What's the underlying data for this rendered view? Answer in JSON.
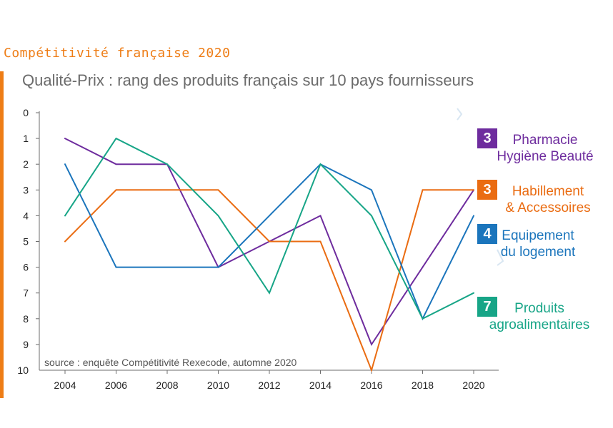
{
  "header": {
    "title": "Compétitivité française 2020",
    "subtitle": "Qualité-Prix : rang des produits français sur 10 pays fournisseurs"
  },
  "colors": {
    "accent": "#ee7d16",
    "pharmacie": "#6e2c9e",
    "habillement": "#ea6c12",
    "equipement": "#1b75bc",
    "agro": "#17a587"
  },
  "chart_data": {
    "type": "line",
    "title": "Qualité-Prix : rang des produits français sur 10 pays fournisseurs",
    "x": [
      2004,
      2006,
      2008,
      2010,
      2012,
      2014,
      2016,
      2018,
      2020
    ],
    "x_tick_labels": [
      "2004",
      "2006",
      "2008",
      "2010",
      "2012",
      "2014",
      "2016",
      "2018",
      "2020"
    ],
    "y_tick_labels": [
      "0",
      "1",
      "2",
      "3",
      "4",
      "5",
      "6",
      "7",
      "8",
      "9",
      "10"
    ],
    "ylim": [
      0,
      10
    ],
    "y_inverted": true,
    "grid": false,
    "xlabel": "",
    "ylabel": "",
    "series": [
      {
        "key": "pharmacie",
        "name": "Pharmacie Hygiène Beauté",
        "rank_2020": "3",
        "label_lines": [
          "Pharmacie",
          "Hygiène Beauté"
        ],
        "values": [
          1,
          2,
          2,
          6,
          5,
          4,
          9,
          6,
          3
        ]
      },
      {
        "key": "habillement",
        "name": "Habillement & Accessoires",
        "rank_2020": "3",
        "label_lines": [
          "Habillement",
          "& Accessoires"
        ],
        "values": [
          5,
          3,
          3,
          3,
          5,
          5,
          10,
          3,
          3
        ]
      },
      {
        "key": "equipement",
        "name": "Equipement du logement",
        "rank_2020": "4",
        "label_lines": [
          "Equipement",
          "du logement"
        ],
        "values": [
          2,
          6,
          6,
          6,
          4,
          2,
          3,
          8,
          4
        ]
      },
      {
        "key": "agro",
        "name": "Produits agroalimentaires",
        "rank_2020": "7",
        "label_lines": [
          "Produits",
          "agroalimentaires"
        ],
        "values": [
          4,
          1,
          2,
          4,
          7,
          2,
          4,
          8,
          7
        ]
      }
    ],
    "source": "source : enquête Compétitivité Rexecode, automne 2020"
  }
}
